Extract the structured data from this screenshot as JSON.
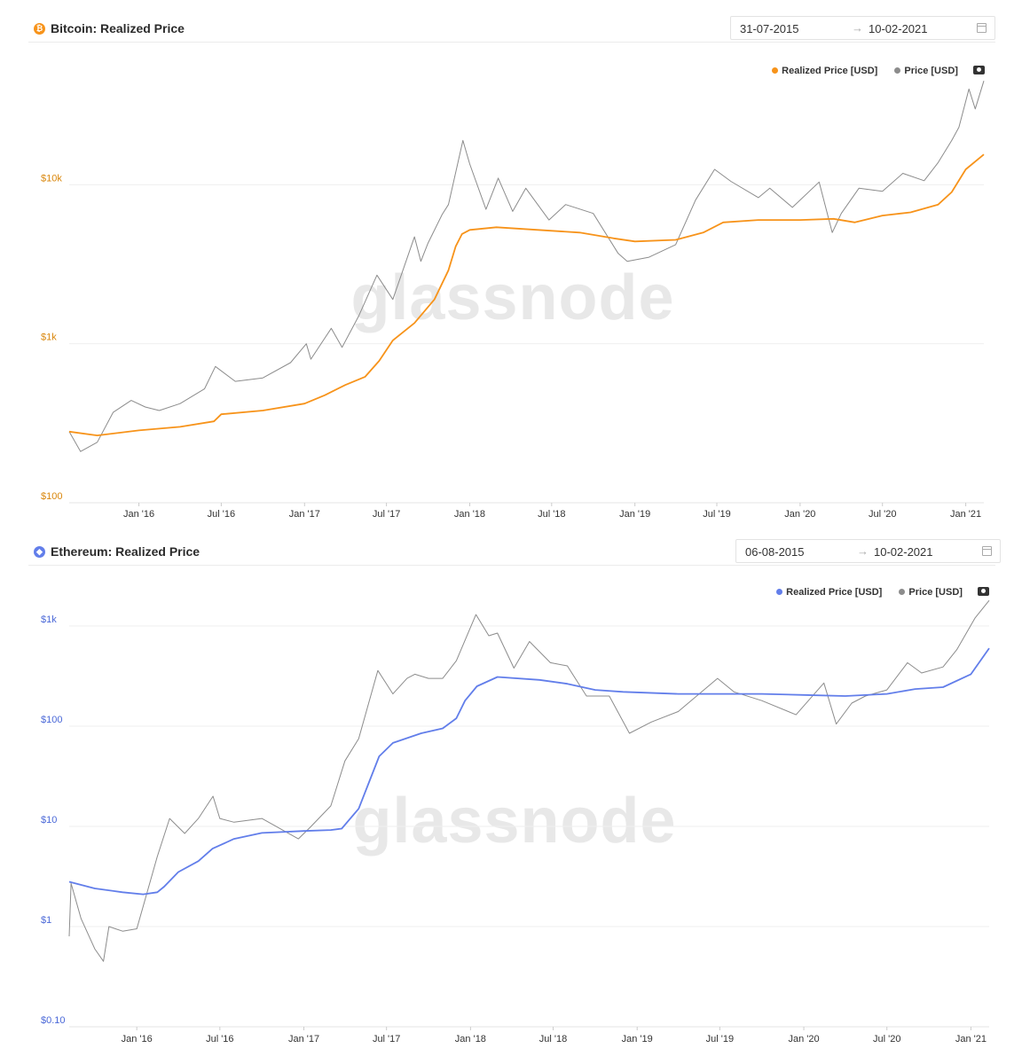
{
  "panels": {
    "btc": {
      "title": "Bitcoin: Realized Price",
      "icon": "bitcoin-icon",
      "date_from": "31-07-2015",
      "date_to": "10-02-2021",
      "arrow": "→",
      "legend": [
        "Realized Price [USD]",
        "Price [USD]"
      ],
      "watermark": "glassnode"
    },
    "eth": {
      "title": "Ethereum: Realized Price",
      "icon": "ethereum-icon",
      "date_from": "06-08-2015",
      "date_to": "10-02-2021",
      "arrow": "→",
      "legend": [
        "Realized Price [USD]",
        "Price [USD]"
      ],
      "watermark": "glassnode"
    }
  },
  "chart_data": [
    {
      "type": "line",
      "title": "Bitcoin: Realized Price",
      "yscale": "log",
      "ylim": [
        100,
        50000
      ],
      "xlim": [
        "2015-07-31",
        "2021-02-10"
      ],
      "y_ticks": [
        "$100",
        "$1k",
        "$10k"
      ],
      "y_tick_values": [
        100,
        1000,
        10000
      ],
      "x_ticks": [
        "Jan '16",
        "Jul '16",
        "Jan '17",
        "Jul '17",
        "Jan '18",
        "Jul '18",
        "Jan '19",
        "Jul '19",
        "Jan '20",
        "Jul '20",
        "Jan '21"
      ],
      "x_tick_dates": [
        "2016-01-01",
        "2016-07-01",
        "2017-01-01",
        "2017-07-01",
        "2018-01-01",
        "2018-07-01",
        "2019-01-01",
        "2019-07-01",
        "2020-01-01",
        "2020-07-01",
        "2021-01-01"
      ],
      "legend_position": "top-right",
      "grid": true,
      "colors": {
        "realized": "#f7931a",
        "price": "#8c8c8c",
        "tick": "#d9860b"
      },
      "series": [
        {
          "name": "Realized Price [USD]",
          "x": [
            "2015-07-31",
            "2015-10-01",
            "2016-01-01",
            "2016-04-01",
            "2016-06-15",
            "2016-07-01",
            "2016-10-01",
            "2017-01-01",
            "2017-02-15",
            "2017-04-01",
            "2017-05-15",
            "2017-06-15",
            "2017-07-15",
            "2017-09-01",
            "2017-10-15",
            "2017-11-15",
            "2017-12-01",
            "2017-12-15",
            "2018-01-01",
            "2018-03-01",
            "2018-06-01",
            "2018-09-01",
            "2018-11-15",
            "2019-01-01",
            "2019-04-01",
            "2019-06-01",
            "2019-07-15",
            "2019-10-01",
            "2020-01-01",
            "2020-03-15",
            "2020-05-01",
            "2020-07-01",
            "2020-09-01",
            "2020-11-01",
            "2020-12-01",
            "2021-01-01",
            "2021-02-10"
          ],
          "values": [
            280,
            265,
            285,
            300,
            325,
            360,
            380,
            420,
            475,
            550,
            620,
            780,
            1050,
            1350,
            1900,
            2900,
            4100,
            4900,
            5200,
            5400,
            5200,
            5000,
            4600,
            4400,
            4500,
            5000,
            5800,
            6000,
            6000,
            6100,
            5800,
            6400,
            6700,
            7500,
            9000,
            12500,
            15500
          ]
        },
        {
          "name": "Price [USD]",
          "x": [
            "2015-07-31",
            "2015-08-25",
            "2015-10-01",
            "2015-11-05",
            "2015-12-15",
            "2016-01-15",
            "2016-02-15",
            "2016-04-01",
            "2016-05-25",
            "2016-06-18",
            "2016-08-01",
            "2016-10-01",
            "2016-12-01",
            "2017-01-05",
            "2017-01-15",
            "2017-03-01",
            "2017-03-25",
            "2017-05-01",
            "2017-06-10",
            "2017-07-15",
            "2017-09-01",
            "2017-09-15",
            "2017-10-01",
            "2017-11-01",
            "2017-11-15",
            "2017-12-17",
            "2018-01-01",
            "2018-02-06",
            "2018-03-05",
            "2018-04-06",
            "2018-05-05",
            "2018-06-25",
            "2018-08-01",
            "2018-10-01",
            "2018-11-25",
            "2018-12-15",
            "2019-02-01",
            "2019-04-01",
            "2019-05-15",
            "2019-06-26",
            "2019-08-01",
            "2019-10-01",
            "2019-10-26",
            "2019-12-15",
            "2020-02-12",
            "2020-03-12",
            "2020-04-01",
            "2020-05-10",
            "2020-07-01",
            "2020-08-15",
            "2020-10-01",
            "2020-11-01",
            "2020-12-01",
            "2020-12-17",
            "2021-01-08",
            "2021-01-22",
            "2021-02-10"
          ],
          "values": [
            280,
            210,
            240,
            370,
            440,
            400,
            380,
            420,
            520,
            720,
            580,
            610,
            760,
            1000,
            800,
            1250,
            950,
            1500,
            2700,
            1900,
            4700,
            3300,
            4300,
            6500,
            7500,
            19000,
            13500,
            7000,
            11000,
            6800,
            9500,
            6000,
            7500,
            6600,
            3700,
            3300,
            3500,
            4200,
            8000,
            12500,
            10500,
            8300,
            9500,
            7200,
            10400,
            5000,
            6600,
            9500,
            9100,
            11800,
            10600,
            13800,
            19000,
            23000,
            40000,
            30000,
            45000
          ]
        }
      ]
    },
    {
      "type": "line",
      "title": "Ethereum: Realized Price",
      "yscale": "log",
      "ylim": [
        0.1,
        2000
      ],
      "xlim": [
        "2015-08-06",
        "2021-02-10"
      ],
      "y_ticks": [
        "$0.10",
        "$1",
        "$10",
        "$100",
        "$1k"
      ],
      "y_tick_values": [
        0.1,
        1,
        10,
        100,
        1000
      ],
      "x_ticks": [
        "Jan '16",
        "Jul '16",
        "Jan '17",
        "Jul '17",
        "Jan '18",
        "Jul '18",
        "Jan '19",
        "Jul '19",
        "Jan '20",
        "Jul '20",
        "Jan '21"
      ],
      "x_tick_dates": [
        "2016-01-01",
        "2016-07-01",
        "2017-01-01",
        "2017-07-01",
        "2018-01-01",
        "2018-07-01",
        "2019-01-01",
        "2019-07-01",
        "2020-01-01",
        "2020-07-01",
        "2021-01-01"
      ],
      "legend_position": "top-right",
      "grid": true,
      "colors": {
        "realized": "#627eea",
        "price": "#8c8c8c",
        "tick": "#4a68d8"
      },
      "series": [
        {
          "name": "Realized Price [USD]",
          "x": [
            "2015-08-06",
            "2015-10-01",
            "2015-12-01",
            "2016-01-15",
            "2016-02-15",
            "2016-03-01",
            "2016-04-01",
            "2016-05-15",
            "2016-06-15",
            "2016-08-01",
            "2016-10-01",
            "2017-01-01",
            "2017-03-01",
            "2017-03-25",
            "2017-05-01",
            "2017-05-20",
            "2017-06-15",
            "2017-07-15",
            "2017-09-15",
            "2017-11-01",
            "2017-12-01",
            "2017-12-20",
            "2018-01-15",
            "2018-03-01",
            "2018-06-01",
            "2018-08-01",
            "2018-10-01",
            "2018-12-01",
            "2019-04-01",
            "2019-07-01",
            "2019-10-01",
            "2020-01-01",
            "2020-04-01",
            "2020-07-01",
            "2020-09-01",
            "2020-11-01",
            "2021-01-01",
            "2021-02-10"
          ],
          "values": [
            2.8,
            2.4,
            2.2,
            2.1,
            2.2,
            2.5,
            3.5,
            4.5,
            6.0,
            7.5,
            8.6,
            9.0,
            9.2,
            9.5,
            15,
            25,
            50,
            68,
            85,
            95,
            120,
            180,
            250,
            310,
            290,
            265,
            230,
            220,
            210,
            210,
            210,
            205,
            200,
            210,
            235,
            245,
            330,
            600
          ]
        },
        {
          "name": "Price [USD]",
          "x": [
            "2015-08-06",
            "2015-08-10",
            "2015-09-01",
            "2015-10-01",
            "2015-10-20",
            "2015-11-01",
            "2015-12-01",
            "2016-01-01",
            "2016-02-15",
            "2016-03-13",
            "2016-04-15",
            "2016-05-15",
            "2016-06-16",
            "2016-07-01",
            "2016-08-01",
            "2016-10-01",
            "2016-12-20",
            "2017-01-15",
            "2017-03-01",
            "2017-04-01",
            "2017-05-01",
            "2017-06-12",
            "2017-07-15",
            "2017-08-15",
            "2017-09-01",
            "2017-10-01",
            "2017-11-01",
            "2017-12-01",
            "2018-01-13",
            "2018-02-10",
            "2018-03-01",
            "2018-04-06",
            "2018-05-10",
            "2018-06-25",
            "2018-08-01",
            "2018-09-12",
            "2018-11-01",
            "2018-12-15",
            "2019-02-01",
            "2019-04-01",
            "2019-06-26",
            "2019-08-01",
            "2019-10-01",
            "2019-12-15",
            "2020-02-14",
            "2020-03-12",
            "2020-04-15",
            "2020-05-15",
            "2020-07-01",
            "2020-08-15",
            "2020-09-15",
            "2020-11-01",
            "2020-12-01",
            "2021-01-10",
            "2021-02-10"
          ],
          "values": [
            0.8,
            2.7,
            1.2,
            0.6,
            0.45,
            1.0,
            0.9,
            0.95,
            5.0,
            12,
            8.5,
            12,
            20,
            12,
            11,
            12,
            7.5,
            9.8,
            16,
            45,
            75,
            360,
            210,
            300,
            330,
            300,
            300,
            450,
            1300,
            800,
            850,
            380,
            700,
            430,
            400,
            200,
            200,
            85,
            110,
            140,
            300,
            220,
            180,
            130,
            270,
            105,
            170,
            200,
            230,
            430,
            340,
            390,
            580,
            1200,
            1800
          ]
        }
      ]
    }
  ]
}
